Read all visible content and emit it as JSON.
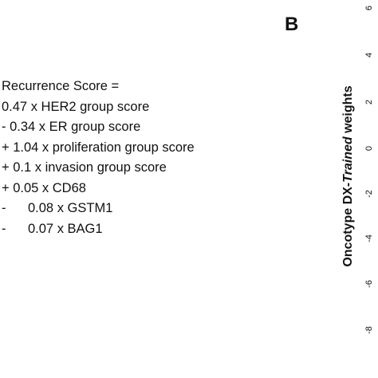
{
  "formula": {
    "lines": [
      "Recurrence Score =",
      "0.47 x HER2 group score",
      "- 0.34 x ER group score",
      "+ 1.04 x proliferation group score",
      "+ 0.1 x invasion group score",
      "+ 0.05 x CD68",
      "-      0.08 x GSTM1",
      "-      0.07 x BAG1"
    ]
  },
  "panel_label": "B",
  "axis": {
    "ylabel_prefix": "Oncotype DX-",
    "ylabel_italic": "Trained",
    "ylabel_suffix": " weights",
    "ticks": [
      "6",
      "4",
      "2",
      "0",
      "-2",
      "-4",
      "-6",
      "-8"
    ]
  }
}
